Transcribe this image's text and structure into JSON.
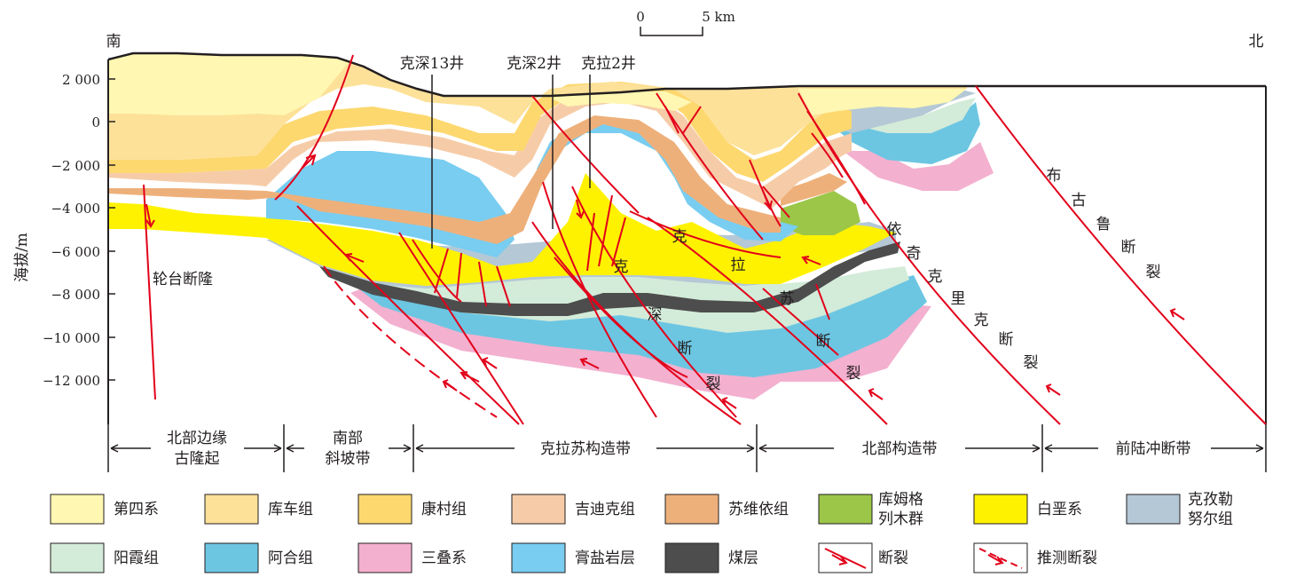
{
  "scale_bar": {
    "zero": "0",
    "five": "5 km"
  },
  "orientation": {
    "south": "南",
    "north": "北"
  },
  "axis": {
    "ylabel": "海拔/m",
    "ticks": [
      "2 000",
      "0",
      "−2 000",
      "−4 000",
      "−6 000",
      "−8 000",
      "−10 000",
      "−12 000"
    ]
  },
  "wells": {
    "w1": "克深13井",
    "w2": "克深2井",
    "w3": "克拉2井"
  },
  "fault_names": {
    "luntai": "轮台断隆",
    "kelasu": [
      "克",
      "拉",
      "苏"
    ],
    "keshen": [
      "克",
      "深",
      "断",
      "裂"
    ],
    "kelasu_fault": [
      "断",
      "裂"
    ],
    "yiqikelike": [
      "依",
      "奇",
      "克",
      "里",
      "克",
      "断",
      "裂"
    ],
    "bulu": [
      "布",
      "古",
      "鲁",
      "断",
      "裂"
    ]
  },
  "zones": {
    "z1": [
      "北部边缘",
      "古隆起"
    ],
    "z2": [
      "南部",
      "斜坡带"
    ],
    "z3": "克拉苏构造带",
    "z4": "北部构造带",
    "z5": "前陆冲断带"
  },
  "legend": [
    {
      "key": "q",
      "label": [
        "第四系"
      ],
      "color": "#fff7b2"
    },
    {
      "key": "kc",
      "label": [
        "库车组"
      ],
      "color": "#fde199"
    },
    {
      "key": "kcun",
      "label": [
        "康村组"
      ],
      "color": "#fdd86f"
    },
    {
      "key": "jdk",
      "label": [
        "吉迪克组"
      ],
      "color": "#f6cca8"
    },
    {
      "key": "swy",
      "label": [
        "苏维依组"
      ],
      "color": "#eeb07a"
    },
    {
      "key": "kmg",
      "label": [
        "库姆格",
        "列木群"
      ],
      "color": "#9bc648"
    },
    {
      "key": "bai",
      "label": [
        "白垩系"
      ],
      "color": "#fff200"
    },
    {
      "key": "kzl",
      "label": [
        "克孜勒",
        "努尔组"
      ],
      "color": "#b4c8d6"
    },
    {
      "key": "yx",
      "label": [
        "阳霞组"
      ],
      "color": "#d3ebd9"
    },
    {
      "key": "ah",
      "label": [
        "阿合组"
      ],
      "color": "#6cc6e2"
    },
    {
      "key": "sd",
      "label": [
        "三叠系"
      ],
      "color": "#f3b0cf"
    },
    {
      "key": "gy",
      "label": [
        "膏盐岩层"
      ],
      "color": "#78cdf0"
    },
    {
      "key": "mc",
      "label": [
        "煤层"
      ],
      "color": "#4d4d4d"
    },
    {
      "key": "dl",
      "label": [
        "断裂"
      ],
      "color": "#e2001a"
    },
    {
      "key": "tc",
      "label": [
        "推测断裂"
      ],
      "color": "#e2001a"
    }
  ]
}
